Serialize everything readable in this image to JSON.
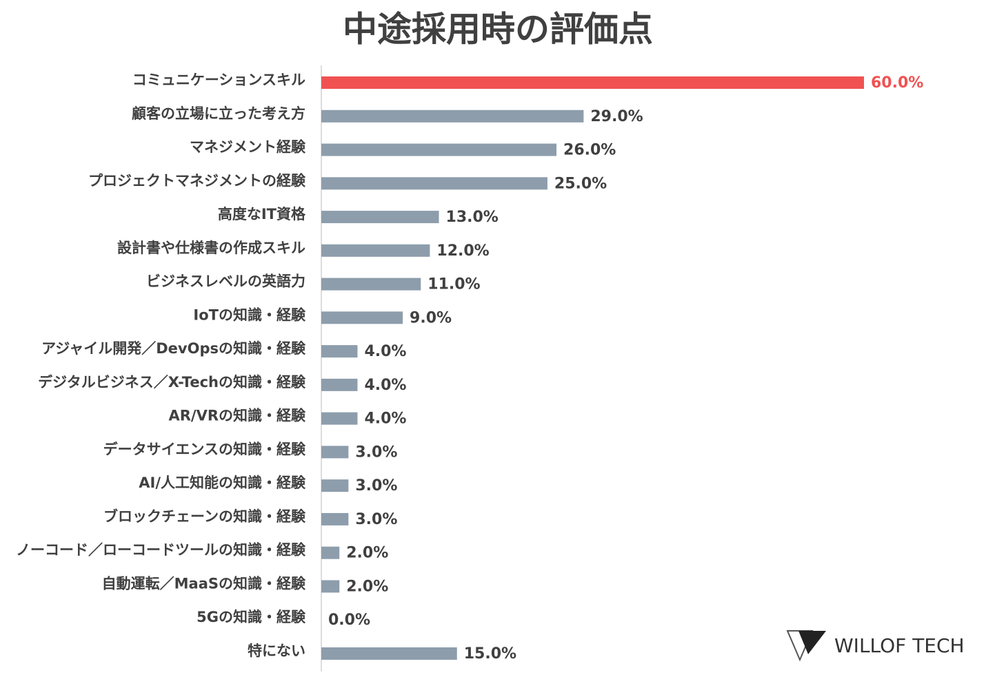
{
  "chart_data": {
    "type": "hbar",
    "title": "中途採用時の評価点",
    "categories": [
      "コミュニケーションスキル",
      "顧客の立場に立った考え方",
      "マネジメント経験",
      "プロジェクトマネジメントの経験",
      "高度なIT資格",
      "設計書や仕様書の作成スキル",
      "ビジネスレベルの英語力",
      "IoTの知識・経験",
      "アジャイル開発／DevOpsの知識・経験",
      "デジタルビジネス／X-Techの知識・経験",
      "AR/VRの知識・経験",
      "データサイエンスの知識・経験",
      "AI/人工知能の知識・経験",
      "ブロックチェーンの知識・経験",
      "ノーコード／ローコードツールの知識・経験",
      "自動運転／MaaSの知識・経験",
      "5Gの知識・経験",
      "特にない"
    ],
    "values": [
      60,
      29,
      26,
      25,
      13,
      12,
      11,
      9,
      4,
      4,
      4,
      3,
      3,
      3,
      2,
      2,
      0,
      15
    ],
    "value_labels": [
      "60.0%",
      "29.0%",
      "26.0%",
      "25.0%",
      "13.0%",
      "12.0%",
      "11.0%",
      "9.0%",
      "4.0%",
      "4.0%",
      "4.0%",
      "3.0%",
      "3.0%",
      "3.0%",
      "2.0%",
      "2.0%",
      "0.0%",
      "15.0%"
    ],
    "colors": [
      "#f05252",
      "#8d9dac",
      "#8d9dac",
      "#8d9dac",
      "#8d9dac",
      "#8d9dac",
      "#8d9dac",
      "#8d9dac",
      "#8d9dac",
      "#8d9dac",
      "#8d9dac",
      "#8d9dac",
      "#8d9dac",
      "#8d9dac",
      "#8d9dac",
      "#8d9dac",
      "#8d9dac",
      "#8d9dac"
    ],
    "label_colors": [
      "#f05252",
      "#404040",
      "#404040",
      "#404040",
      "#404040",
      "#404040",
      "#404040",
      "#404040",
      "#404040",
      "#404040",
      "#404040",
      "#404040",
      "#404040",
      "#404040",
      "#404040",
      "#404040",
      "#404040",
      "#404040"
    ],
    "xlim": [
      0,
      60
    ]
  },
  "logo": "WILLOF TECH"
}
